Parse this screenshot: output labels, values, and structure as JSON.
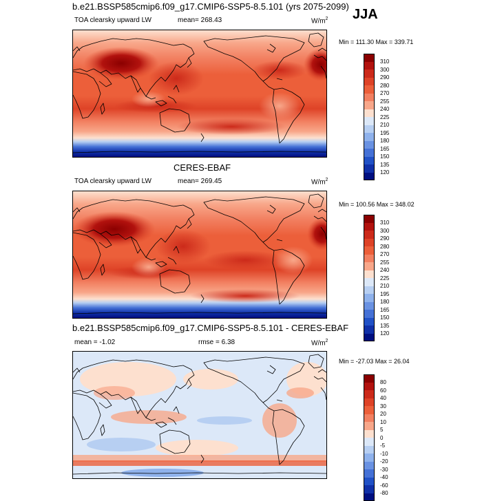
{
  "page": {
    "season": "JJA"
  },
  "panels": [
    {
      "title": "b.e21.BSSP585cmip6.f09_g17.CMIP6-SSP5-8.5.101 (yrs 2075-2099)",
      "left_label": "TOA clearsky upward LW",
      "stat_label": "mean= 268.43",
      "units_base": "W/m",
      "units_exp": "2",
      "minmax": "Min = 111.30 Max = 339.71",
      "kind": "abs"
    },
    {
      "title": "CERES-EBAF",
      "left_label": "TOA clearsky upward LW",
      "stat_label": "mean= 269.45",
      "units_base": "W/m",
      "units_exp": "2",
      "minmax": "Min = 100.56 Max = 348.02",
      "kind": "abs"
    },
    {
      "title": "b.e21.BSSP585cmip6.f09_g17.CMIP6-SSP5-8.5.101 - CERES-EBAF",
      "left_label": "mean =  -1.02",
      "stat_label": "rmse =   6.38",
      "units_base": "W/m",
      "units_exp": "2",
      "minmax": "Min = -27.03 Max = 26.04",
      "kind": "diff"
    }
  ],
  "colorbars": {
    "abs": {
      "labels": [
        "310",
        "300",
        "290",
        "280",
        "270",
        "255",
        "240",
        "225",
        "210",
        "195",
        "180",
        "165",
        "150",
        "135",
        "120"
      ],
      "colors": [
        "#8b0000",
        "#b2120e",
        "#cc2a1a",
        "#de4327",
        "#ec5f3a",
        "#f28061",
        "#f8a78a",
        "#fde0cf",
        "#dce8f8",
        "#b7cff2",
        "#8fb2ec",
        "#6a92e2",
        "#4571d6",
        "#2151c6",
        "#1030a8",
        "#000f80"
      ]
    },
    "diff": {
      "labels": [
        "80",
        "60",
        "40",
        "30",
        "20",
        "10",
        "5",
        "0",
        "-5",
        "-10",
        "-20",
        "-30",
        "-40",
        "-60",
        "-80"
      ],
      "colors": [
        "#8b0000",
        "#b2120e",
        "#cc2a1a",
        "#de4327",
        "#ec5f3a",
        "#f28061",
        "#f8a78a",
        "#fde0cf",
        "#dce8f8",
        "#b7cff2",
        "#8fb2ec",
        "#6a92e2",
        "#4571d6",
        "#2151c6",
        "#1030a8",
        "#000f80"
      ]
    }
  }
}
